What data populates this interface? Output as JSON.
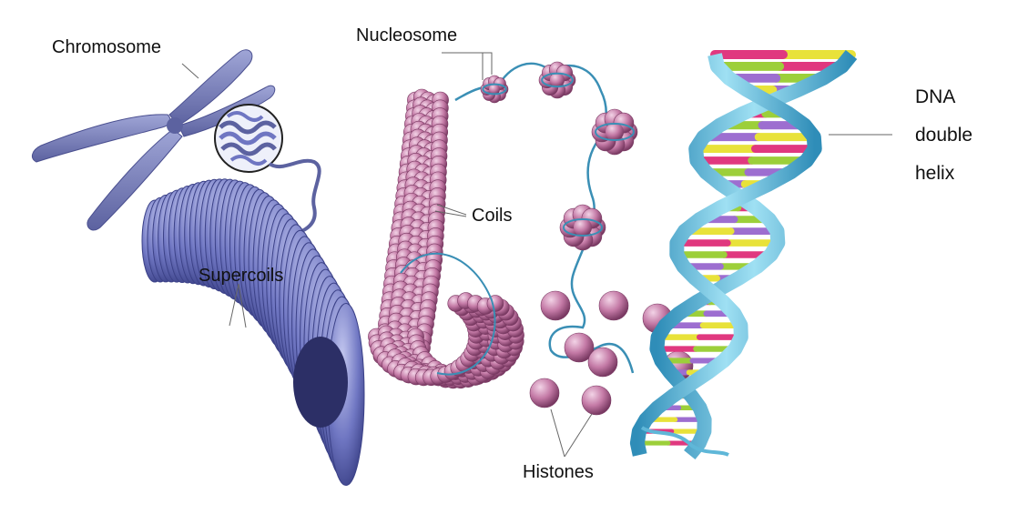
{
  "labels": {
    "chromosome": "Chromosome",
    "nucleosome": "Nucleosome",
    "coils": "Coils",
    "supercoils": "Supercoils",
    "histones": "Histones",
    "dna_line1": "DNA",
    "dna_line2": "double",
    "dna_line3": "helix"
  },
  "colors": {
    "chromosome": "#7c83b8",
    "supercoil": "#6f76c2",
    "histone": "#c47aa6",
    "dna_backbone": "#5fb7d8",
    "base_yellow": "#e8e23a",
    "base_magenta": "#e0387f",
    "base_green": "#9ccf3a",
    "base_purple": "#9d6ed0",
    "leader_line": "#888888"
  }
}
